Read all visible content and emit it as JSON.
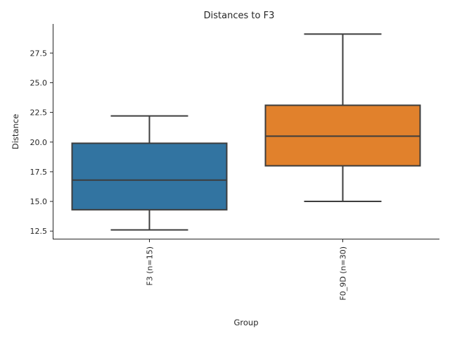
{
  "chart_data": {
    "type": "box",
    "title": "Distances to F3",
    "xlabel": "Group",
    "ylabel": "Distance",
    "ylim": [
      11.8,
      29.95
    ],
    "yticks": [
      12.5,
      15.0,
      17.5,
      20.0,
      22.5,
      25.0,
      27.5
    ],
    "ytick_labels": [
      "12.5",
      "15.0",
      "17.5",
      "20.0",
      "22.5",
      "25.0",
      "27.5"
    ],
    "grid": false,
    "categories": [
      "F3 (n=15)",
      "F0_9D (n=30)"
    ],
    "boxes": [
      {
        "label": "F3 (n=15)",
        "min": 12.6,
        "q1": 14.3,
        "median": 16.8,
        "q3": 19.9,
        "max": 22.2,
        "color": "#3274a1"
      },
      {
        "label": "F0_9D (n=30)",
        "min": 15.0,
        "q1": 18.0,
        "median": 20.5,
        "q3": 23.1,
        "max": 29.1,
        "color": "#e1812c"
      }
    ]
  }
}
